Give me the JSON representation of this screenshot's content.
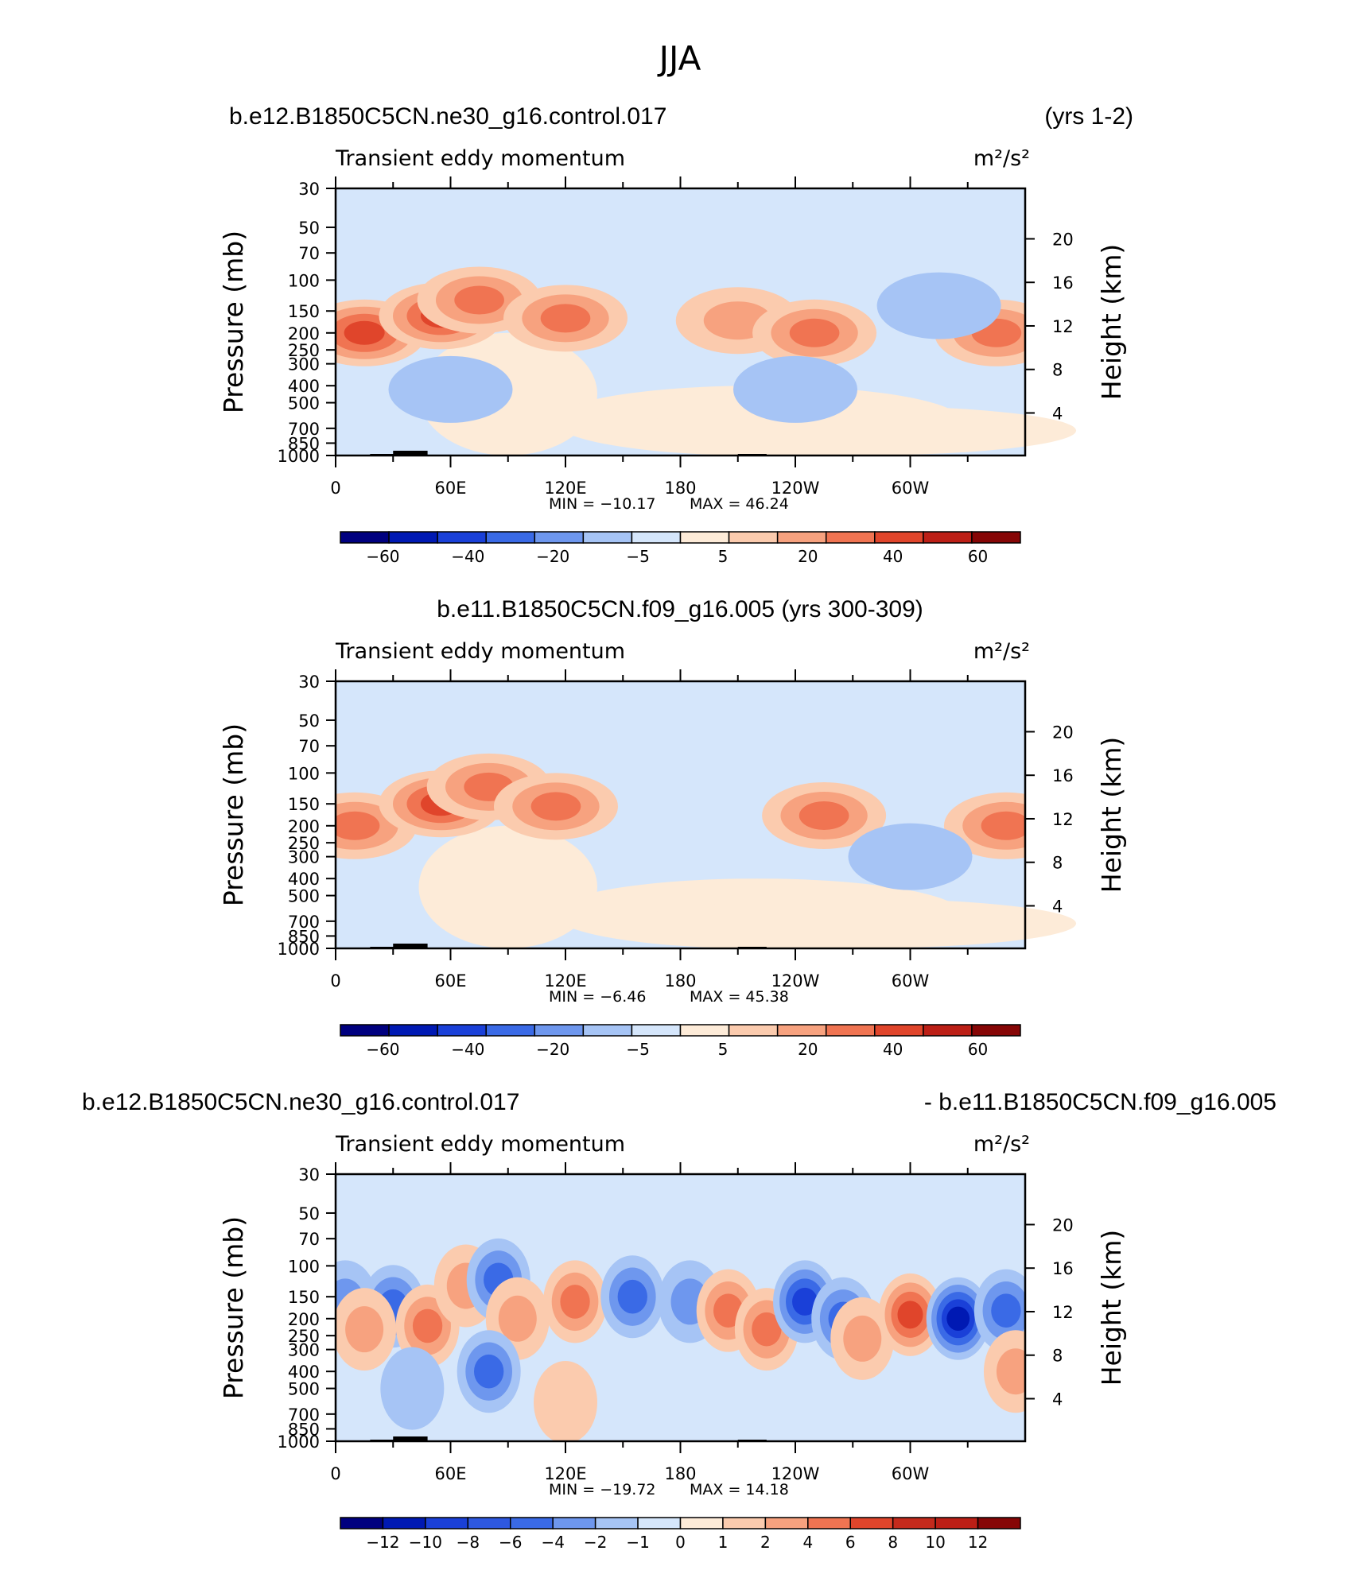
{
  "figure_title": "JJA",
  "colors": {
    "blues": [
      "#00007f",
      "#0019b3",
      "#1a40d8",
      "#3a6ae6",
      "#6e97ee",
      "#a6c4f5",
      "#d5e6fb"
    ],
    "reds": [
      "#fdebd8",
      "#fbcbae",
      "#f7a27f",
      "#f07452",
      "#e0452b",
      "#bc1f16",
      "#860606"
    ],
    "topo": "#000000"
  },
  "chart_data": [
    {
      "type": "contour",
      "header_left": "b.e12.B1850C5CN.ne30_g16.control.017",
      "header_right": "(yrs 1-2)",
      "header_center": "",
      "variable": "Transient eddy momentum",
      "units": "m²/s²",
      "ylabel_left": "Pressure (mb)",
      "ylabel_right": "Height (km)",
      "pressure_ticks": [
        "30",
        "50",
        "70",
        "100",
        "150",
        "200",
        "250",
        "300",
        "400",
        "500",
        "700",
        "850",
        "1000"
      ],
      "height_ticks": [
        "20",
        "16",
        "12",
        "8",
        "4"
      ],
      "lon_ticks": [
        "0",
        "60E",
        "120E",
        "180",
        "120W",
        "60W"
      ],
      "min_label": "MIN = −10.17",
      "max_label": "MAX =   46.24",
      "min": -10.17,
      "max": 46.24,
      "colorbar_labels": [
        "−60",
        "−40",
        "−20",
        "−5",
        "5",
        "20",
        "40",
        "60"
      ],
      "features": [
        {
          "lon": 15,
          "p": 200,
          "level": 4
        },
        {
          "lon": 55,
          "p": 160,
          "level": 4
        },
        {
          "lon": 75,
          "p": 130,
          "level": 3
        },
        {
          "lon": 120,
          "p": 165,
          "level": 3
        },
        {
          "lon": 210,
          "p": 170,
          "level": 2
        },
        {
          "lon": 250,
          "p": 200,
          "level": 3
        },
        {
          "lon": 345,
          "p": 200,
          "level": 3
        },
        {
          "lon": 60,
          "p": 420,
          "level": -1
        },
        {
          "lon": 240,
          "p": 420,
          "level": -1
        },
        {
          "lon": 315,
          "p": 140,
          "level": -1
        }
      ]
    },
    {
      "type": "contour",
      "header_left": "",
      "header_right": "",
      "header_center": "b.e11.B1850C5CN.f09_g16.005 (yrs 300-309)",
      "variable": "Transient eddy momentum",
      "units": "m²/s²",
      "ylabel_left": "Pressure (mb)",
      "ylabel_right": "Height (km)",
      "pressure_ticks": [
        "30",
        "50",
        "70",
        "100",
        "150",
        "200",
        "250",
        "300",
        "400",
        "500",
        "700",
        "850",
        "1000"
      ],
      "height_ticks": [
        "20",
        "16",
        "12",
        "8",
        "4"
      ],
      "lon_ticks": [
        "0",
        "60E",
        "120E",
        "180",
        "120W",
        "60W"
      ],
      "min_label": "MIN =   −6.46",
      "max_label": "MAX =   45.38",
      "min": -6.46,
      "max": 45.38,
      "colorbar_labels": [
        "−60",
        "−40",
        "−20",
        "−5",
        "5",
        "20",
        "40",
        "60"
      ],
      "features": [
        {
          "lon": 10,
          "p": 200,
          "level": 3
        },
        {
          "lon": 55,
          "p": 150,
          "level": 4
        },
        {
          "lon": 80,
          "p": 120,
          "level": 3
        },
        {
          "lon": 115,
          "p": 155,
          "level": 3
        },
        {
          "lon": 255,
          "p": 175,
          "level": 3
        },
        {
          "lon": 350,
          "p": 200,
          "level": 3
        },
        {
          "lon": 300,
          "p": 300,
          "level": -1
        }
      ]
    },
    {
      "type": "contour",
      "header_left": "b.e12.B1850C5CN.ne30_g16.control.017",
      "header_right": "- b.e11.B1850C5CN.f09_g16.005",
      "header_center": "",
      "variable": "Transient eddy momentum",
      "units": "m²/s²",
      "ylabel_left": "Pressure (mb)",
      "ylabel_right": "Height (km)",
      "pressure_ticks": [
        "30",
        "50",
        "70",
        "100",
        "150",
        "200",
        "250",
        "300",
        "400",
        "500",
        "700",
        "850",
        "1000"
      ],
      "height_ticks": [
        "20",
        "16",
        "12",
        "8",
        "4"
      ],
      "lon_ticks": [
        "0",
        "60E",
        "120E",
        "180",
        "120W",
        "60W"
      ],
      "min_label": "MIN = −19.72",
      "max_label": "MAX =   14.18",
      "min": -19.72,
      "max": 14.18,
      "colorbar_labels": [
        "−12",
        "−10",
        "−8",
        "−6",
        "−4",
        "−2",
        "−1",
        "0",
        "1",
        "2",
        "4",
        "6",
        "8",
        "10",
        "12"
      ],
      "features": [
        {
          "lon": 5,
          "p": 160,
          "level": -2
        },
        {
          "lon": 30,
          "p": 170,
          "level": -3
        },
        {
          "lon": 15,
          "p": 230,
          "level": 2
        },
        {
          "lon": 48,
          "p": 220,
          "level": 3
        },
        {
          "lon": 68,
          "p": 130,
          "level": 2
        },
        {
          "lon": 85,
          "p": 120,
          "level": -3
        },
        {
          "lon": 95,
          "p": 200,
          "level": 2
        },
        {
          "lon": 80,
          "p": 400,
          "level": -3
        },
        {
          "lon": 125,
          "p": 160,
          "level": 3
        },
        {
          "lon": 155,
          "p": 150,
          "level": -3
        },
        {
          "lon": 185,
          "p": 160,
          "level": -2
        },
        {
          "lon": 205,
          "p": 180,
          "level": 3
        },
        {
          "lon": 225,
          "p": 230,
          "level": 3
        },
        {
          "lon": 245,
          "p": 160,
          "level": -4
        },
        {
          "lon": 265,
          "p": 200,
          "level": -3
        },
        {
          "lon": 275,
          "p": 260,
          "level": 2
        },
        {
          "lon": 300,
          "p": 190,
          "level": 4
        },
        {
          "lon": 325,
          "p": 200,
          "level": -5
        },
        {
          "lon": 350,
          "p": 180,
          "level": -3
        },
        {
          "lon": 355,
          "p": 400,
          "level": 2
        },
        {
          "lon": 120,
          "p": 600,
          "level": 1
        },
        {
          "lon": 40,
          "p": 500,
          "level": -1
        }
      ]
    }
  ]
}
